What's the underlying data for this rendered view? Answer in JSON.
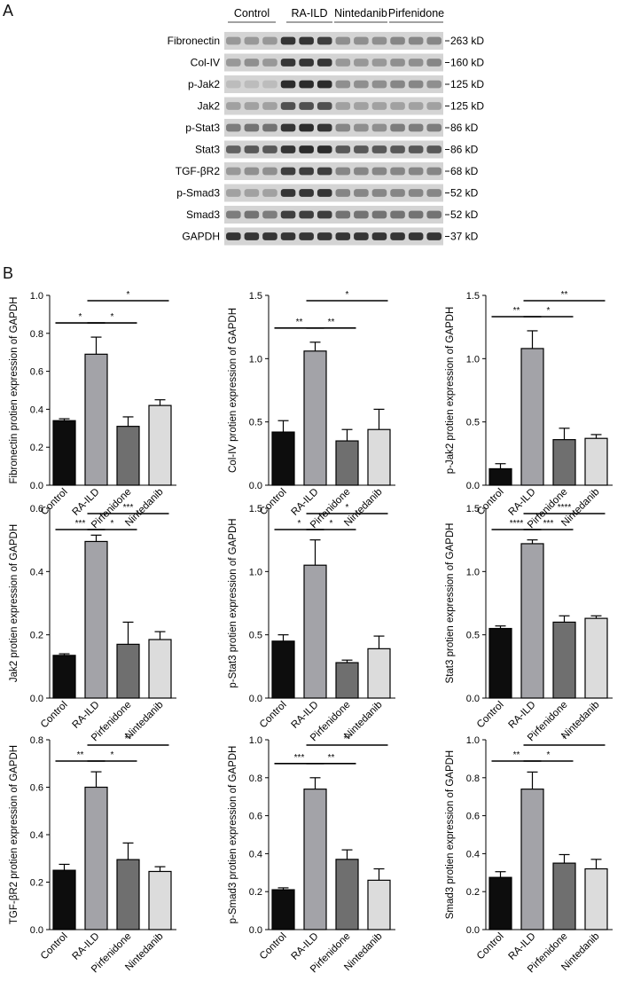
{
  "panels": {
    "a": "A",
    "b": "B"
  },
  "blot": {
    "groups": [
      "Control",
      "RA-ILD",
      "Nintedanib",
      "Pirfenidone"
    ],
    "rows": [
      {
        "protein": "Fibronectin",
        "mw": "263 kD",
        "intensity": [
          0.35,
          0.35,
          0.35,
          0.9,
          0.9,
          0.85,
          0.4,
          0.4,
          0.4,
          0.45,
          0.45,
          0.45
        ]
      },
      {
        "protein": "Col-IV",
        "mw": "160 kD",
        "intensity": [
          0.35,
          0.4,
          0.35,
          0.9,
          0.9,
          0.9,
          0.35,
          0.35,
          0.35,
          0.4,
          0.4,
          0.45
        ]
      },
      {
        "protein": "p-Jak2",
        "mw": "125 kD",
        "intensity": [
          0.15,
          0.15,
          0.15,
          0.95,
          0.95,
          0.95,
          0.4,
          0.4,
          0.4,
          0.45,
          0.45,
          0.4
        ]
      },
      {
        "protein": "Jak2",
        "mw": "125 kD",
        "intensity": [
          0.3,
          0.3,
          0.3,
          0.75,
          0.75,
          0.75,
          0.3,
          0.3,
          0.3,
          0.3,
          0.3,
          0.3
        ]
      },
      {
        "protein": "p-Stat3",
        "mw": "86 kD",
        "intensity": [
          0.5,
          0.55,
          0.55,
          0.9,
          0.95,
          0.9,
          0.45,
          0.4,
          0.4,
          0.5,
          0.5,
          0.5
        ]
      },
      {
        "protein": "Stat3",
        "mw": "86 kD",
        "intensity": [
          0.65,
          0.7,
          0.7,
          0.9,
          0.95,
          0.95,
          0.7,
          0.7,
          0.7,
          0.7,
          0.7,
          0.7
        ]
      },
      {
        "protein": "TGF-βR2",
        "mw": "68 kD",
        "intensity": [
          0.35,
          0.4,
          0.4,
          0.85,
          0.85,
          0.85,
          0.45,
          0.45,
          0.45,
          0.45,
          0.45,
          0.45
        ]
      },
      {
        "protein": "p-Smad3",
        "mw": "52 kD",
        "intensity": [
          0.3,
          0.3,
          0.3,
          0.9,
          0.9,
          0.9,
          0.45,
          0.45,
          0.45,
          0.45,
          0.45,
          0.45
        ]
      },
      {
        "protein": "Smad3",
        "mw": "52 kD",
        "intensity": [
          0.5,
          0.55,
          0.5,
          0.85,
          0.85,
          0.85,
          0.55,
          0.55,
          0.55,
          0.55,
          0.55,
          0.55
        ]
      },
      {
        "protein": "GAPDH",
        "mw": "37 kD",
        "intensity": [
          0.9,
          0.9,
          0.9,
          0.9,
          0.9,
          0.9,
          0.9,
          0.9,
          0.9,
          0.9,
          0.9,
          0.9
        ]
      }
    ]
  },
  "colors": {
    "bars": [
      "#0d0d0d",
      "#a3a3a8",
      "#6f6f6f",
      "#dcdcdc"
    ],
    "stroke": "#000000"
  },
  "chart_data": [
    {
      "type": "bar",
      "categories": [
        "Control",
        "RA-ILD",
        "Pirfenidone",
        "Nintedanib"
      ],
      "values": [
        0.34,
        0.69,
        0.31,
        0.42
      ],
      "errors": [
        0.01,
        0.09,
        0.05,
        0.03
      ],
      "ylabel": "Fibronectin protien expression of GAPDH",
      "ylim": [
        0,
        1.0
      ],
      "ticks": [
        "0.0",
        "0.2",
        "0.4",
        "0.6",
        "0.8",
        "1.0"
      ],
      "significance": [
        {
          "from": 0,
          "to": 1,
          "label": "*"
        },
        {
          "from": 1,
          "to": 2,
          "label": "*"
        },
        {
          "from": 1,
          "to": 3,
          "label": "*"
        }
      ]
    },
    {
      "type": "bar",
      "categories": [
        "Control",
        "RA-ILD",
        "Pirfenidone",
        "Nintedanib"
      ],
      "values": [
        0.42,
        1.06,
        0.35,
        0.44
      ],
      "errors": [
        0.09,
        0.07,
        0.09,
        0.16
      ],
      "ylabel": "Col-IV protien expression of GAPDH",
      "ylim": [
        0,
        1.5
      ],
      "ticks": [
        "0.0",
        "0.5",
        "1.0",
        "1.5"
      ],
      "significance": [
        {
          "from": 0,
          "to": 1,
          "label": "**"
        },
        {
          "from": 1,
          "to": 2,
          "label": "**"
        },
        {
          "from": 1,
          "to": 3,
          "label": "*"
        }
      ]
    },
    {
      "type": "bar",
      "categories": [
        "Control",
        "RA-ILD",
        "Pirfenidone",
        "Nintedanib"
      ],
      "values": [
        0.13,
        1.08,
        0.36,
        0.37
      ],
      "errors": [
        0.04,
        0.14,
        0.09,
        0.03
      ],
      "ylabel": "p-Jak2 protien expression of GAPDH",
      "ylim": [
        0,
        1.5
      ],
      "ticks": [
        "0.0",
        "0.5",
        "1.0",
        "1.5"
      ],
      "significance": [
        {
          "from": 0,
          "to": 1,
          "label": "**"
        },
        {
          "from": 1,
          "to": 2,
          "label": "*"
        },
        {
          "from": 1,
          "to": 3,
          "label": "**"
        }
      ]
    },
    {
      "type": "bar",
      "categories": [
        "Control",
        "RA-ILD",
        "Pirfenidone",
        "Nintedanib"
      ],
      "values": [
        0.135,
        0.495,
        0.17,
        0.185
      ],
      "errors": [
        0.005,
        0.02,
        0.07,
        0.025
      ],
      "ylabel": "Jak2 protien expression of GAPDH",
      "ylim": [
        0,
        0.6
      ],
      "ticks": [
        "0.0",
        "0.2",
        "0.4",
        "0.6"
      ],
      "significance": [
        {
          "from": 0,
          "to": 1,
          "label": "***"
        },
        {
          "from": 1,
          "to": 2,
          "label": "*"
        },
        {
          "from": 1,
          "to": 3,
          "label": "***"
        }
      ]
    },
    {
      "type": "bar",
      "categories": [
        "Control",
        "RA-ILD",
        "Pirfenidone",
        "Nintedanib"
      ],
      "values": [
        0.45,
        1.05,
        0.28,
        0.39
      ],
      "errors": [
        0.05,
        0.2,
        0.02,
        0.1
      ],
      "ylabel": "p-Stat3 protien expression of GAPDH",
      "ylim": [
        0,
        1.5
      ],
      "ticks": [
        "0.0",
        "0.5",
        "1.0",
        "1.5"
      ],
      "significance": [
        {
          "from": 0,
          "to": 1,
          "label": "*"
        },
        {
          "from": 1,
          "to": 2,
          "label": "*"
        },
        {
          "from": 1,
          "to": 3,
          "label": "*"
        }
      ]
    },
    {
      "type": "bar",
      "categories": [
        "Control",
        "RA-ILD",
        "Pirfenidone",
        "Nintedanib"
      ],
      "values": [
        0.55,
        1.22,
        0.6,
        0.63
      ],
      "errors": [
        0.02,
        0.03,
        0.05,
        0.02
      ],
      "ylabel": "Stat3 protien expression of GAPDH",
      "ylim": [
        0,
        1.5
      ],
      "ticks": [
        "0.0",
        "0.5",
        "1.0",
        "1.5"
      ],
      "significance": [
        {
          "from": 0,
          "to": 1,
          "label": "****"
        },
        {
          "from": 1,
          "to": 2,
          "label": "***"
        },
        {
          "from": 1,
          "to": 3,
          "label": "****"
        }
      ]
    },
    {
      "type": "bar",
      "categories": [
        "Control",
        "RA-ILD",
        "Pirfenidone",
        "Nintedanib"
      ],
      "values": [
        0.25,
        0.6,
        0.295,
        0.245
      ],
      "errors": [
        0.025,
        0.065,
        0.07,
        0.02
      ],
      "ylabel": "TGF-βR2 protien expression of GAPDH",
      "ylim": [
        0,
        0.8
      ],
      "ticks": [
        "0.0",
        "0.2",
        "0.4",
        "0.6",
        "0.8"
      ],
      "significance": [
        {
          "from": 0,
          "to": 1,
          "label": "**"
        },
        {
          "from": 1,
          "to": 2,
          "label": "*"
        },
        {
          "from": 1,
          "to": 3,
          "label": "**"
        }
      ]
    },
    {
      "type": "bar",
      "categories": [
        "Control",
        "RA-ILD",
        "Pirfenidone",
        "Nintedanib"
      ],
      "values": [
        0.21,
        0.74,
        0.37,
        0.26
      ],
      "errors": [
        0.01,
        0.06,
        0.05,
        0.06
      ],
      "ylabel": "p-Smad3 protien expression of GAPDH",
      "ylim": [
        0,
        1.0
      ],
      "ticks": [
        "0.0",
        "0.2",
        "0.4",
        "0.6",
        "0.8",
        "1.0"
      ],
      "significance": [
        {
          "from": 0,
          "to": 1,
          "label": "***"
        },
        {
          "from": 1,
          "to": 2,
          "label": "**"
        },
        {
          "from": 1,
          "to": 3,
          "label": "**"
        }
      ]
    },
    {
      "type": "bar",
      "categories": [
        "Control",
        "RA-ILD",
        "Pirfenidone",
        "Nintedanib"
      ],
      "values": [
        0.275,
        0.74,
        0.35,
        0.32
      ],
      "errors": [
        0.03,
        0.09,
        0.045,
        0.05
      ],
      "ylabel": "Smad3 protien expression of GAPDH",
      "ylim": [
        0,
        1.0
      ],
      "ticks": [
        "0.0",
        "0.2",
        "0.4",
        "0.6",
        "0.8",
        "1.0"
      ],
      "significance": [
        {
          "from": 0,
          "to": 1,
          "label": "**"
        },
        {
          "from": 1,
          "to": 2,
          "label": "*"
        },
        {
          "from": 1,
          "to": 3,
          "label": "*"
        }
      ]
    }
  ]
}
